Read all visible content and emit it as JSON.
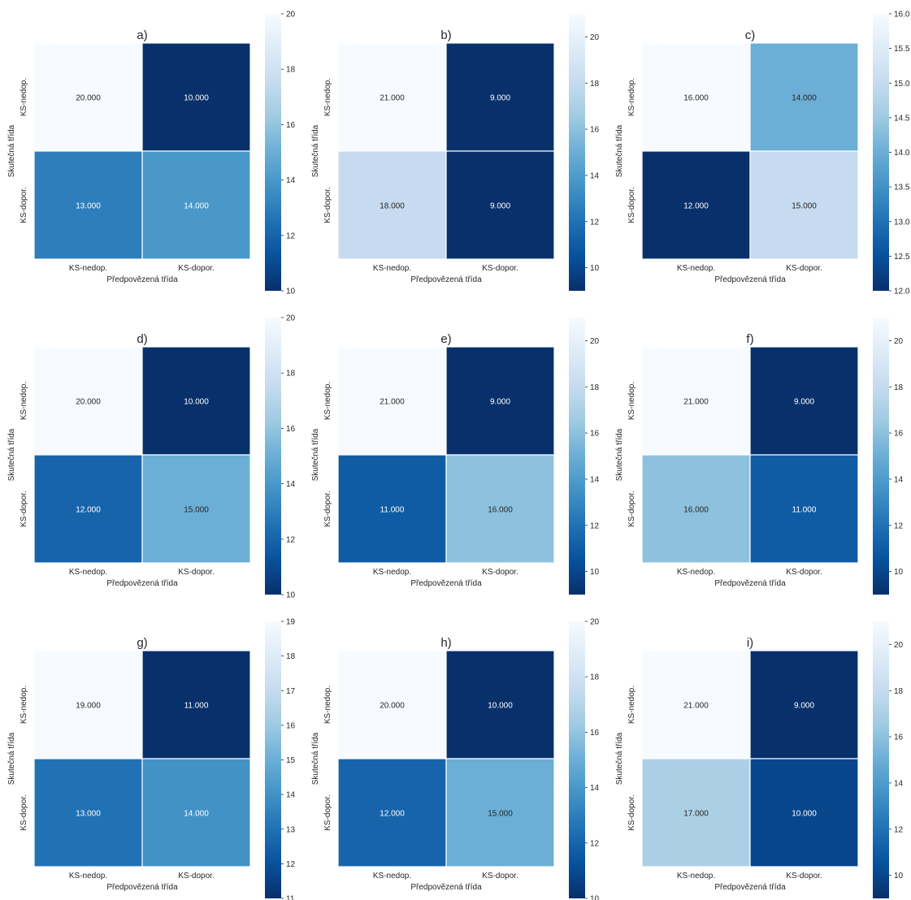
{
  "chart_data": [
    {
      "type": "heatmap",
      "title": "a)",
      "xlabel": "Předpovězená třída",
      "ylabel": "Skutečná třída",
      "x_tick_labels": [
        "KS-nedop.",
        "KS-dopor."
      ],
      "y_tick_labels": [
        "KS-nedop.",
        "KS-dopor."
      ],
      "values": [
        [
          20,
          10
        ],
        [
          13,
          14
        ]
      ],
      "cell_labels": [
        [
          "20.000",
          "10.000"
        ],
        [
          "13.000",
          "14.000"
        ]
      ],
      "colorbar": {
        "min": 10,
        "max": 20,
        "ticks": [
          10,
          12,
          14,
          16,
          18,
          20
        ],
        "tick_labels": [
          "10",
          "12",
          "14",
          "16",
          "18",
          "20"
        ]
      }
    },
    {
      "type": "heatmap",
      "title": "b)",
      "xlabel": "Předpovězená třída",
      "ylabel": "Skutečná třída",
      "x_tick_labels": [
        "KS-nedop.",
        "KS-dopor."
      ],
      "y_tick_labels": [
        "KS-nedop.",
        "KS-dopor."
      ],
      "values": [
        [
          21,
          9
        ],
        [
          18,
          9
        ]
      ],
      "cell_labels": [
        [
          "21.000",
          "9.000"
        ],
        [
          "18.000",
          "9.000"
        ]
      ],
      "colorbar": {
        "min": 9,
        "max": 21,
        "ticks": [
          10,
          12,
          14,
          16,
          18,
          20
        ],
        "tick_labels": [
          "10",
          "12",
          "14",
          "16",
          "18",
          "20"
        ]
      }
    },
    {
      "type": "heatmap",
      "title": "c)",
      "xlabel": "Předpovězená třída",
      "ylabel": "Skutečná třída",
      "x_tick_labels": [
        "KS-nedop.",
        "KS-dopor."
      ],
      "y_tick_labels": [
        "KS-nedop.",
        "KS-dopor."
      ],
      "values": [
        [
          16,
          14
        ],
        [
          12,
          15
        ]
      ],
      "cell_labels": [
        [
          "16.000",
          "14.000"
        ],
        [
          "12.000",
          "15.000"
        ]
      ],
      "colorbar": {
        "min": 12,
        "max": 16,
        "ticks": [
          12,
          12.5,
          13,
          13.5,
          14,
          14.5,
          15,
          15.5,
          16
        ],
        "tick_labels": [
          "12.0",
          "12.5",
          "13.0",
          "13.5",
          "14.0",
          "14.5",
          "15.0",
          "15.5",
          "16.0"
        ]
      }
    },
    {
      "type": "heatmap",
      "title": "d)",
      "xlabel": "Předpovězená třída",
      "ylabel": "Skutečná třída",
      "x_tick_labels": [
        "KS-nedop.",
        "KS-dopor."
      ],
      "y_tick_labels": [
        "KS-nedop.",
        "KS-dopor."
      ],
      "values": [
        [
          20,
          10
        ],
        [
          12,
          15
        ]
      ],
      "cell_labels": [
        [
          "20.000",
          "10.000"
        ],
        [
          "12.000",
          "15.000"
        ]
      ],
      "colorbar": {
        "min": 10,
        "max": 20,
        "ticks": [
          10,
          12,
          14,
          16,
          18,
          20
        ],
        "tick_labels": [
          "10",
          "12",
          "14",
          "16",
          "18",
          "20"
        ]
      }
    },
    {
      "type": "heatmap",
      "title": "e)",
      "xlabel": "Předpovězená třída",
      "ylabel": "Skutečná třída",
      "x_tick_labels": [
        "KS-nedop.",
        "KS-dopor."
      ],
      "y_tick_labels": [
        "KS-nedop.",
        "KS-dopor."
      ],
      "values": [
        [
          21,
          9
        ],
        [
          11,
          16
        ]
      ],
      "cell_labels": [
        [
          "21.000",
          "9.000"
        ],
        [
          "11.000",
          "16.000"
        ]
      ],
      "colorbar": {
        "min": 9,
        "max": 21,
        "ticks": [
          10,
          12,
          14,
          16,
          18,
          20
        ],
        "tick_labels": [
          "10",
          "12",
          "14",
          "16",
          "18",
          "20"
        ]
      }
    },
    {
      "type": "heatmap",
      "title": "f)",
      "xlabel": "Předpovězená třída",
      "ylabel": "Skutečná třída",
      "x_tick_labels": [
        "KS-nedop.",
        "KS-dopor."
      ],
      "y_tick_labels": [
        "KS-nedop.",
        "KS-dopor."
      ],
      "values": [
        [
          21,
          9
        ],
        [
          16,
          11
        ]
      ],
      "cell_labels": [
        [
          "21.000",
          "9.000"
        ],
        [
          "16.000",
          "11.000"
        ]
      ],
      "colorbar": {
        "min": 9,
        "max": 21,
        "ticks": [
          10,
          12,
          14,
          16,
          18,
          20
        ],
        "tick_labels": [
          "10",
          "12",
          "14",
          "16",
          "18",
          "20"
        ]
      }
    },
    {
      "type": "heatmap",
      "title": "g)",
      "xlabel": "Předpovězená třída",
      "ylabel": "Skutečná třída",
      "x_tick_labels": [
        "KS-nedop.",
        "KS-dopor."
      ],
      "y_tick_labels": [
        "KS-nedop.",
        "KS-dopor."
      ],
      "values": [
        [
          19,
          11
        ],
        [
          13,
          14
        ]
      ],
      "cell_labels": [
        [
          "19.000",
          "11.000"
        ],
        [
          "13.000",
          "14.000"
        ]
      ],
      "colorbar": {
        "min": 11,
        "max": 19,
        "ticks": [
          11,
          12,
          13,
          14,
          15,
          16,
          17,
          18,
          19
        ],
        "tick_labels": [
          "11",
          "12",
          "13",
          "14",
          "15",
          "16",
          "17",
          "18",
          "19"
        ]
      }
    },
    {
      "type": "heatmap",
      "title": "h)",
      "xlabel": "Předpovězená třída",
      "ylabel": "Skutečná třída",
      "x_tick_labels": [
        "KS-nedop.",
        "KS-dopor."
      ],
      "y_tick_labels": [
        "KS-nedop.",
        "KS-dopor."
      ],
      "values": [
        [
          20,
          10
        ],
        [
          12,
          15
        ]
      ],
      "cell_labels": [
        [
          "20.000",
          "10.000"
        ],
        [
          "12.000",
          "15.000"
        ]
      ],
      "colorbar": {
        "min": 10,
        "max": 20,
        "ticks": [
          10,
          12,
          14,
          16,
          18,
          20
        ],
        "tick_labels": [
          "10",
          "12",
          "14",
          "16",
          "18",
          "20"
        ]
      }
    },
    {
      "type": "heatmap",
      "title": "i)",
      "xlabel": "Předpovězená třída",
      "ylabel": "Skutečná třída",
      "x_tick_labels": [
        "KS-nedop.",
        "KS-dopor."
      ],
      "y_tick_labels": [
        "KS-nedop.",
        "KS-dopor."
      ],
      "values": [
        [
          21,
          9
        ],
        [
          17,
          10
        ]
      ],
      "cell_labels": [
        [
          "21.000",
          "9.000"
        ],
        [
          "17.000",
          "10.000"
        ]
      ],
      "colorbar": {
        "min": 9,
        "max": 21,
        "ticks": [
          10,
          12,
          14,
          16,
          18,
          20
        ],
        "tick_labels": [
          "10",
          "12",
          "14",
          "16",
          "18",
          "20"
        ]
      }
    }
  ],
  "colormap": "Blues",
  "colors": {
    "low": "#08306b",
    "high": "#f7fbff",
    "grid": "#ffffff",
    "text_dark": "#262626",
    "text_light": "#ffffff",
    "axis_text": "#262626"
  }
}
